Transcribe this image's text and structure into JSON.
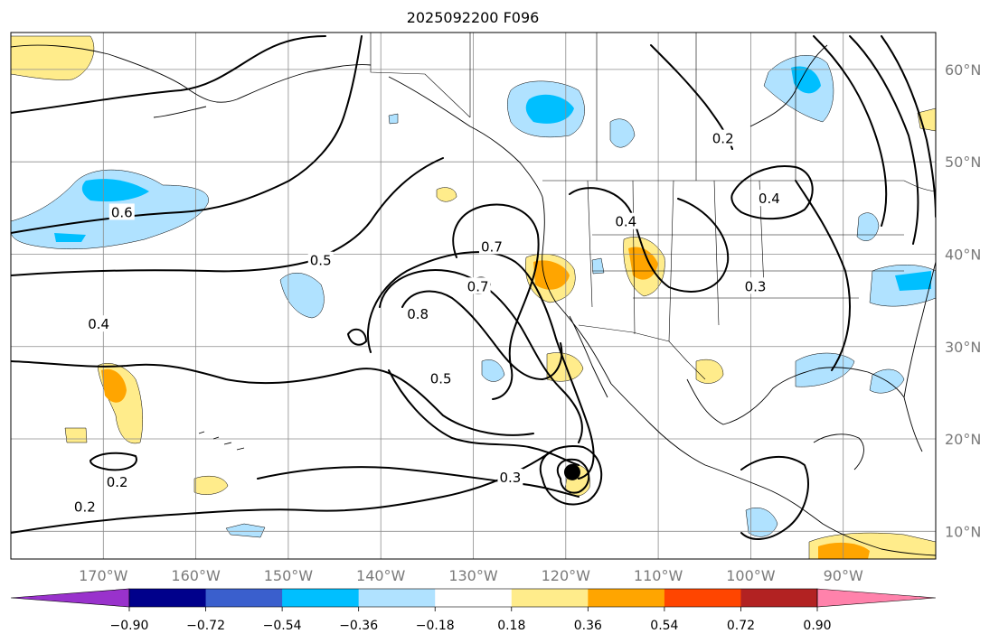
{
  "title": "2025092200 F096",
  "colors": {
    "background": "#ffffff",
    "gridline": "#8c8c8c",
    "tick_text": "#7a7a7a",
    "contour": "#000000",
    "levels": [
      "#9932cc",
      "#00008b",
      "#3a5fcd",
      "#00bfff",
      "#b0e2ff",
      "#ffffff",
      "#ffec8b",
      "#ffa500",
      "#ff4500",
      "#b22222",
      "#ff82ab"
    ]
  },
  "map": {
    "lon_range": [
      -180,
      -80
    ],
    "lat_range": [
      7,
      64
    ],
    "lon_ticks": [
      {
        "lon": -170,
        "label": "170°W"
      },
      {
        "lon": -160,
        "label": "160°W"
      },
      {
        "lon": -150,
        "label": "150°W"
      },
      {
        "lon": -140,
        "label": "140°W"
      },
      {
        "lon": -130,
        "label": "130°W"
      },
      {
        "lon": -120,
        "label": "120°W"
      },
      {
        "lon": -110,
        "label": "110°W"
      },
      {
        "lon": -100,
        "label": "100°W"
      },
      {
        "lon": -90,
        "label": "90°W"
      }
    ],
    "lat_ticks": [
      {
        "lat": 60,
        "label": "60°N"
      },
      {
        "lat": 50,
        "label": "50°N"
      },
      {
        "lat": 40,
        "label": "40°N"
      },
      {
        "lat": 30,
        "label": "30°N"
      },
      {
        "lat": 20,
        "label": "20°N"
      },
      {
        "lat": 10,
        "label": "10°N"
      }
    ],
    "contour_labels": [
      {
        "text": "0.6",
        "lon": -168,
        "lat": 44.5
      },
      {
        "text": "0.5",
        "lon": -146.5,
        "lat": 39.3
      },
      {
        "text": "0.4",
        "lon": -170.5,
        "lat": 32.4
      },
      {
        "text": "0.2",
        "lon": -172,
        "lat": 12.6
      },
      {
        "text": "0.2",
        "lon": -168.5,
        "lat": 15.3
      },
      {
        "text": "0.7",
        "lon": -128,
        "lat": 40.8
      },
      {
        "text": "0.7",
        "lon": -129.5,
        "lat": 36.5
      },
      {
        "text": "0.8",
        "lon": -136,
        "lat": 33.5
      },
      {
        "text": "0.5",
        "lon": -133.5,
        "lat": 26.5
      },
      {
        "text": "0.3",
        "lon": -126,
        "lat": 15.8
      },
      {
        "text": "0.4",
        "lon": -113.5,
        "lat": 43.5
      },
      {
        "text": "0.4",
        "lon": -98,
        "lat": 46
      },
      {
        "text": "0.2",
        "lon": -103,
        "lat": 52.5
      },
      {
        "text": "0.3",
        "lon": -99.5,
        "lat": 36.5
      }
    ],
    "marker": {
      "type": "dot",
      "lon": -119.3,
      "lat": 16.4
    }
  },
  "colorbar": {
    "ticks": [
      "−0.90",
      "−0.72",
      "−0.54",
      "−0.36",
      "−0.18",
      "0.18",
      "0.36",
      "0.54",
      "0.72",
      "0.90"
    ]
  },
  "chart_data": {
    "type": "heatmap",
    "title": "2025092200 F096",
    "xlabel": "",
    "ylabel": "",
    "x_range": [
      -180,
      -80
    ],
    "y_range": [
      7,
      64
    ],
    "grid": true,
    "colorbar_levels": [
      -0.9,
      -0.72,
      -0.54,
      -0.36,
      -0.18,
      0.18,
      0.36,
      0.54,
      0.72,
      0.9
    ],
    "contour_levels": [
      0.2,
      0.3,
      0.4,
      0.5,
      0.6,
      0.7,
      0.8
    ]
  }
}
